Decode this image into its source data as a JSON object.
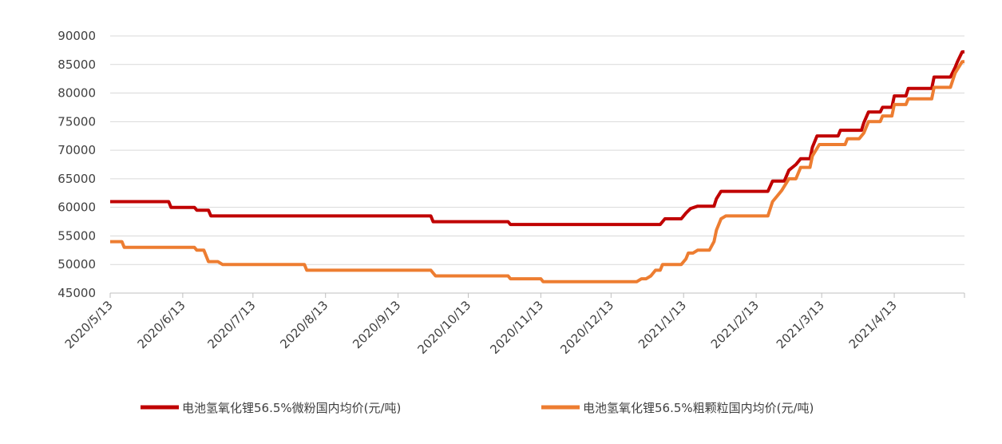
{
  "chart_data": {
    "type": "line",
    "xlim": [
      "2020/5/13",
      "2021/5/13"
    ],
    "xticks": [
      "2020/5/13",
      "2020/6/13",
      "2020/7/13",
      "2020/8/13",
      "2020/9/13",
      "2020/10/13",
      "2020/11/13",
      "2020/12/13",
      "2021/1/13",
      "2021/2/13",
      "2021/3/13",
      "2021/4/13"
    ],
    "ylim": [
      45000,
      90000
    ],
    "yticks": [
      45000,
      50000,
      55000,
      60000,
      65000,
      70000,
      75000,
      80000,
      85000,
      90000
    ],
    "grid": true,
    "series": [
      {
        "name": "电池氢氧化锂56.5%微粉国内均价(元/吨)",
        "color": "#c00000",
        "x": [
          "2020/5/13",
          "2020/6/7",
          "2020/6/8",
          "2020/6/18",
          "2020/6/19",
          "2020/6/24",
          "2020/6/25",
          "2020/9/27",
          "2020/9/28",
          "2020/10/30",
          "2020/10/31",
          "2021/1/3",
          "2021/1/5",
          "2021/1/12",
          "2021/1/14",
          "2021/1/16",
          "2021/1/19",
          "2021/1/26",
          "2021/1/27",
          "2021/1/29",
          "2021/2/18",
          "2021/2/20",
          "2021/2/25",
          "2021/2/27",
          "2021/3/2",
          "2021/3/4",
          "2021/3/8",
          "2021/3/9",
          "2021/3/11",
          "2021/3/20",
          "2021/3/21",
          "2021/3/30",
          "2021/3/31",
          "2021/4/2",
          "2021/4/7",
          "2021/4/8",
          "2021/4/12",
          "2021/4/13",
          "2021/4/18",
          "2021/4/19",
          "2021/4/29",
          "2021/4/30",
          "2021/5/7",
          "2021/5/9",
          "2021/5/10",
          "2021/5/12",
          "2021/5/13"
        ],
        "values": [
          61000,
          61000,
          60000,
          60000,
          59500,
          59500,
          58500,
          58500,
          57500,
          57500,
          57000,
          57000,
          58000,
          58000,
          59000,
          59800,
          60200,
          60200,
          61500,
          62800,
          62800,
          64600,
          64600,
          66500,
          67500,
          68500,
          68500,
          70500,
          72500,
          72500,
          73500,
          73500,
          74800,
          76700,
          76700,
          77500,
          77500,
          79500,
          79500,
          80800,
          80800,
          82800,
          82800,
          84500,
          85500,
          87200,
          87200
        ]
      },
      {
        "name": "电池氢氧化锂56.5%粗颗粒国内均价(元/吨)",
        "color": "#ed7d31",
        "x": [
          "2020/5/13",
          "2020/5/18",
          "2020/5/19",
          "2020/6/18",
          "2020/6/19",
          "2020/6/22",
          "2020/6/24",
          "2020/6/28",
          "2020/6/30",
          "2020/8/4",
          "2020/8/5",
          "2020/9/27",
          "2020/9/29",
          "2020/10/30",
          "2020/10/31",
          "2020/11/13",
          "2020/11/14",
          "2020/12/24",
          "2020/12/26",
          "2020/12/28",
          "2020/12/30",
          "2021/1/1",
          "2021/1/3",
          "2021/1/4",
          "2021/1/12",
          "2021/1/14",
          "2021/1/15",
          "2021/1/17",
          "2021/1/19",
          "2021/1/24",
          "2021/1/26",
          "2021/1/27",
          "2021/1/29",
          "2021/1/31",
          "2021/2/18",
          "2021/2/20",
          "2021/2/22",
          "2021/2/24",
          "2021/2/27",
          "2021/3/2",
          "2021/3/4",
          "2021/3/8",
          "2021/3/9",
          "2021/3/12",
          "2021/3/23",
          "2021/3/24",
          "2021/3/29",
          "2021/3/31",
          "2021/4/2",
          "2021/4/7",
          "2021/4/8",
          "2021/4/12",
          "2021/4/13",
          "2021/4/18",
          "2021/4/19",
          "2021/4/29",
          "2021/4/30",
          "2021/5/7",
          "2021/5/9",
          "2021/5/12",
          "2021/5/13"
        ],
        "values": [
          54000,
          54000,
          53000,
          53000,
          52500,
          52500,
          50500,
          50500,
          50000,
          50000,
          49000,
          49000,
          48000,
          48000,
          47500,
          47500,
          47000,
          47000,
          47500,
          47500,
          48000,
          49000,
          49000,
          50000,
          50000,
          51000,
          52000,
          52000,
          52500,
          52500,
          54000,
          56000,
          58000,
          58500,
          58500,
          61000,
          62000,
          63000,
          65000,
          65000,
          67000,
          67000,
          69000,
          71000,
          71000,
          72000,
          72000,
          73000,
          75000,
          75000,
          76000,
          76000,
          78000,
          78000,
          79000,
          79000,
          81000,
          81000,
          83500,
          85500,
          85500
        ]
      }
    ]
  }
}
